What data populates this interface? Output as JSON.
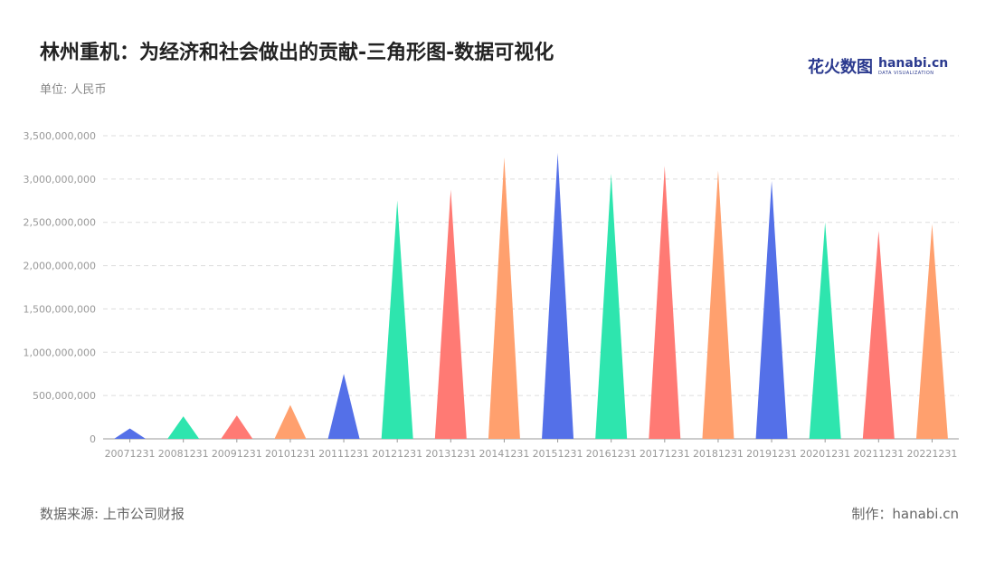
{
  "header": {
    "title": "林州重机：为经济和社会做出的贡献-三角形图-数据可视化",
    "unit": "单位: 人民币"
  },
  "logo": {
    "cn": "花火数图",
    "en": "hanabi.cn",
    "sub": "DATA VISUALIZATION"
  },
  "footer": {
    "source": "数据来源: 上市公司财报",
    "maker": "制作：hanabi.cn"
  },
  "colors": [
    "#5470e8",
    "#2ee5ae",
    "#ff7a74",
    "#ffa06e"
  ],
  "chart_data": {
    "type": "bar",
    "mark": "triangle",
    "categories": [
      "20071231",
      "20081231",
      "20091231",
      "20101231",
      "20111231",
      "20121231",
      "20131231",
      "20141231",
      "20151231",
      "20161231",
      "20171231",
      "20181231",
      "20191231",
      "20201231",
      "20211231",
      "20221231"
    ],
    "values": [
      120000000,
      260000000,
      270000000,
      390000000,
      750000000,
      2750000000,
      2880000000,
      3250000000,
      3300000000,
      3060000000,
      3150000000,
      3100000000,
      2980000000,
      2500000000,
      2400000000,
      2480000000
    ],
    "ylim": [
      0,
      3500000000
    ],
    "yticks": [
      0,
      500000000,
      1000000000,
      1500000000,
      2000000000,
      2500000000,
      3000000000,
      3500000000
    ],
    "ytick_labels": [
      "0",
      "500,000,000",
      "1,000,000,000",
      "1,500,000,000",
      "2,000,000,000",
      "2,500,000,000",
      "3,000,000,000",
      "3,500,000,000"
    ],
    "grid": true,
    "legend": "none"
  }
}
